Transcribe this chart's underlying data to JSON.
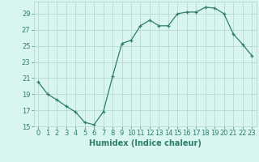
{
  "x": [
    0,
    1,
    2,
    3,
    4,
    5,
    6,
    7,
    8,
    9,
    10,
    11,
    12,
    13,
    14,
    15,
    16,
    17,
    18,
    19,
    20,
    21,
    22,
    23
  ],
  "y": [
    20.5,
    19.0,
    18.3,
    17.5,
    16.8,
    15.5,
    15.2,
    16.8,
    21.2,
    25.3,
    25.7,
    27.5,
    28.2,
    27.5,
    27.5,
    29.0,
    29.2,
    29.2,
    29.8,
    29.7,
    29.0,
    26.5,
    25.2,
    23.8
  ],
  "xlabel": "Humidex (Indice chaleur)",
  "xlim": [
    -0.5,
    23.5
  ],
  "ylim": [
    15,
    30.5
  ],
  "yticks": [
    15,
    17,
    19,
    21,
    23,
    25,
    27,
    29
  ],
  "xticks": [
    0,
    1,
    2,
    3,
    4,
    5,
    6,
    7,
    8,
    9,
    10,
    11,
    12,
    13,
    14,
    15,
    16,
    17,
    18,
    19,
    20,
    21,
    22,
    23
  ],
  "line_color": "#2e7d6e",
  "marker": "+",
  "bg_color": "#d8f5f0",
  "grid_color": "#b8d8d4",
  "axis_fontsize": 7,
  "tick_fontsize": 6
}
